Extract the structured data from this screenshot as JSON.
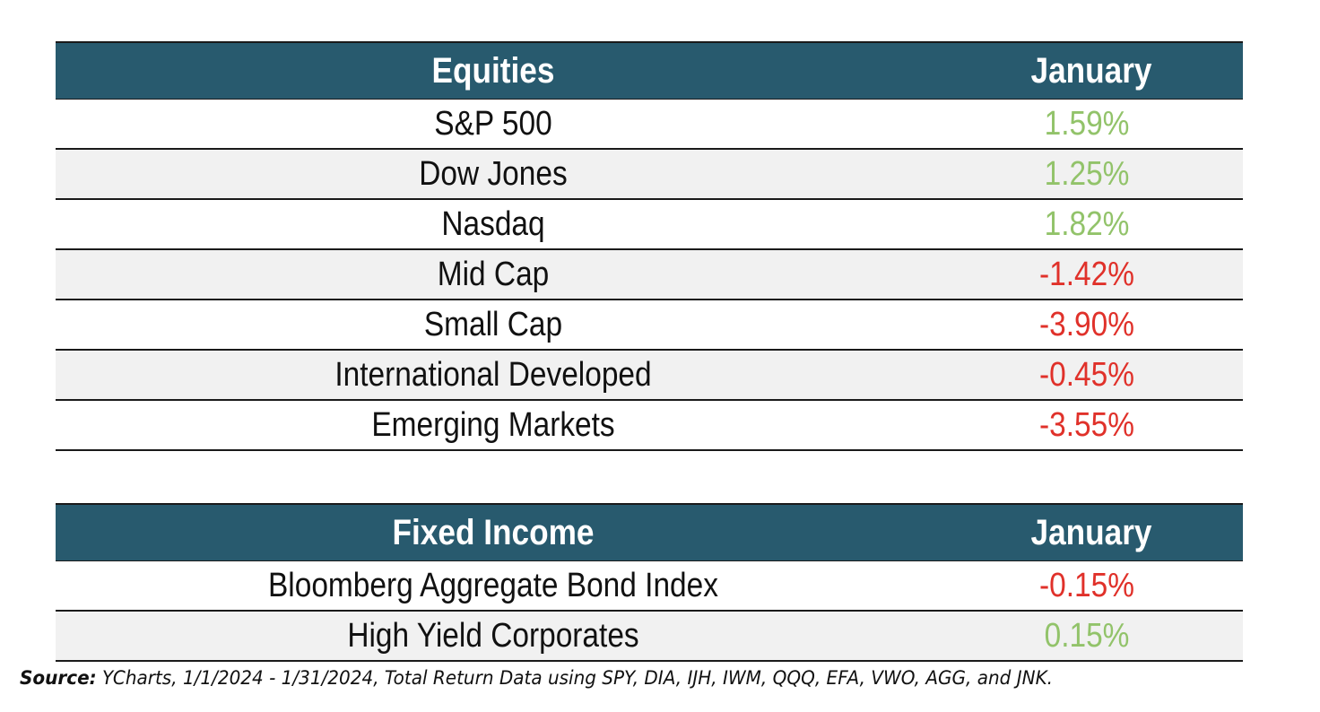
{
  "equities": {
    "header": {
      "name": "Equities",
      "period": "January"
    },
    "rows": [
      {
        "name": "S&P 500",
        "value": "1.59%",
        "sign": "pos"
      },
      {
        "name": "Dow Jones",
        "value": "1.25%",
        "sign": "pos"
      },
      {
        "name": "Nasdaq",
        "value": "1.82%",
        "sign": "pos"
      },
      {
        "name": "Mid Cap",
        "value": "-1.42%",
        "sign": "neg"
      },
      {
        "name": "Small Cap",
        "value": "-3.90%",
        "sign": "neg"
      },
      {
        "name": "International Developed",
        "value": "-0.45%",
        "sign": "neg"
      },
      {
        "name": "Emerging Markets",
        "value": "-3.55%",
        "sign": "neg"
      }
    ]
  },
  "fixed_income": {
    "header": {
      "name": "Fixed Income",
      "period": "January"
    },
    "rows": [
      {
        "name": "Bloomberg Aggregate Bond Index",
        "value": "-0.15%",
        "sign": "neg"
      },
      {
        "name": "High Yield Corporates",
        "value": "0.15%",
        "sign": "pos"
      }
    ]
  },
  "source": {
    "label": "Source:",
    "text": " YCharts, 1/1/2024 - 1/31/2024, Total Return Data using SPY, DIA, IJH, IWM, QQQ, EFA, VWO, AGG, and JNK."
  },
  "colors": {
    "header_bg": "#285a6e",
    "positive": "#92c36a",
    "negative": "#e0312a",
    "row_shade": "#f1f1f1"
  }
}
